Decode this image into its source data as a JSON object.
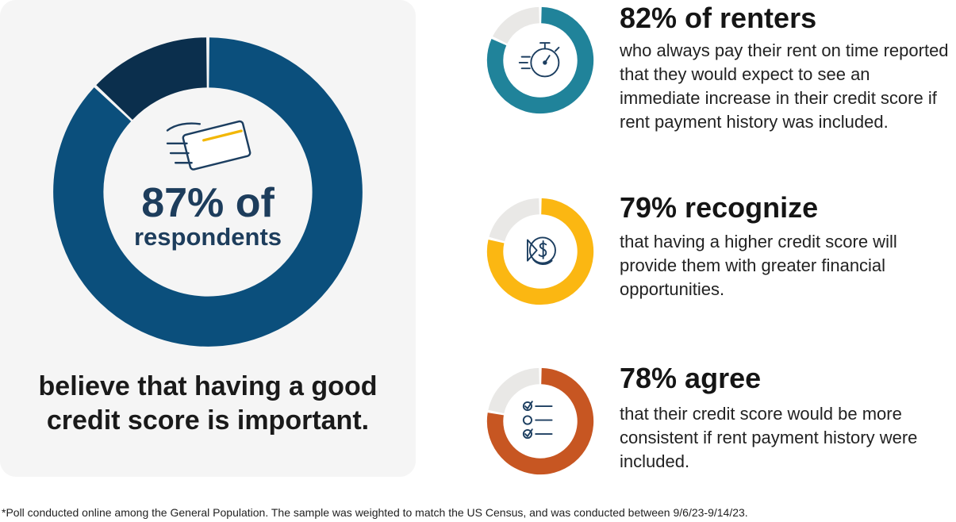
{
  "chart_data": [
    {
      "type": "pie",
      "variant": "donut",
      "slices": [
        {
          "label": "respondents",
          "value": 87,
          "color": "#0b4f7c"
        },
        {
          "label": "",
          "value": 13,
          "color": "#0b2f4d"
        }
      ],
      "headline": "87% of",
      "headline_sub": "respondents",
      "caption": "believe that having a good credit score is important.",
      "icon": "credit-card-icon"
    },
    {
      "type": "pie",
      "variant": "donut",
      "slices": [
        {
          "label": "renters",
          "value": 82,
          "color": "#20839a"
        },
        {
          "label": "",
          "value": 18,
          "color": "#e9e8e6"
        }
      ],
      "headline": "82% of renters",
      "body": "who always pay their rent on time reported that they would expect to see an immediate increase in their credit score if rent payment history was included.",
      "icon": "stopwatch-icon"
    },
    {
      "type": "pie",
      "variant": "donut",
      "slices": [
        {
          "label": "recognize",
          "value": 79,
          "color": "#fbb712"
        },
        {
          "label": "",
          "value": 21,
          "color": "#e9e8e6"
        }
      ],
      "headline": "79% recognize",
      "body": "that having a higher credit score will provide them with greater financial opportunities.",
      "icon": "dollar-coin-icon"
    },
    {
      "type": "pie",
      "variant": "donut",
      "slices": [
        {
          "label": "agree",
          "value": 78,
          "color": "#c75622"
        },
        {
          "label": "",
          "value": 22,
          "color": "#e9e8e6"
        }
      ],
      "headline": "78% agree",
      "body": "that their credit score would be more consistent if rent payment history were included.",
      "icon": "checklist-icon"
    }
  ],
  "footnote": "*Poll conducted online among the General Population. The sample was weighted to match the US Census, and was conducted between 9/6/23-9/14/23."
}
